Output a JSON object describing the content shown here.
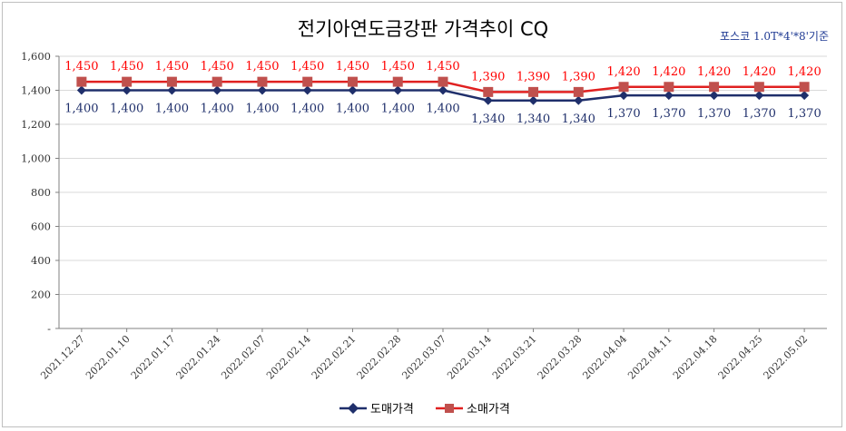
{
  "chart_data": {
    "type": "line",
    "title": "전기아연도금강판 가격추이 CQ",
    "subtitle": "포스코 1.0T*4'*8'기준",
    "categories": [
      "2021.12.27",
      "2022.01.10",
      "2022.01.17",
      "2022.01.24",
      "2022.02.07",
      "2022.02.14",
      "2022.02.21",
      "2022.02.28",
      "2022.03.07",
      "2022.03.14",
      "2022.03.21",
      "2022.03.28",
      "2022.04.04",
      "2022.04.11",
      "2022.04.18",
      "2022.04.25",
      "2022.05.02"
    ],
    "y_tick_labels": [
      "-",
      "200",
      "400",
      "600",
      "800",
      "1,000",
      "1,200",
      "1,400",
      "1,600"
    ],
    "ylim": [
      0,
      1600
    ],
    "grid": true,
    "legend_position": "bottom",
    "series": [
      {
        "name": "도매가격",
        "color": "#1f2f6b",
        "marker": "diamond",
        "values": [
          1400,
          1400,
          1400,
          1400,
          1400,
          1400,
          1400,
          1400,
          1400,
          1340,
          1340,
          1340,
          1370,
          1370,
          1370,
          1370,
          1370
        ],
        "labels": [
          "1,400",
          "1,400",
          "1,400",
          "1,400",
          "1,400",
          "1,400",
          "1,400",
          "1,400",
          "1,400",
          "1,340",
          "1,340",
          "1,340",
          "1,370",
          "1,370",
          "1,370",
          "1,370",
          "1,370"
        ],
        "label_color": "#1f2f6b",
        "label_position": "below"
      },
      {
        "name": "소매가격",
        "color": "#e02020",
        "marker_color": "#c0504d",
        "marker": "square",
        "values": [
          1450,
          1450,
          1450,
          1450,
          1450,
          1450,
          1450,
          1450,
          1450,
          1390,
          1390,
          1390,
          1420,
          1420,
          1420,
          1420,
          1420
        ],
        "labels": [
          "1,450",
          "1,450",
          "1,450",
          "1,450",
          "1,450",
          "1,450",
          "1,450",
          "1,450",
          "1,450",
          "1,390",
          "1,390",
          "1,390",
          "1,420",
          "1,420",
          "1,420",
          "1,420",
          "1,420"
        ],
        "label_color": "#ff0000",
        "label_position": "above"
      }
    ]
  }
}
